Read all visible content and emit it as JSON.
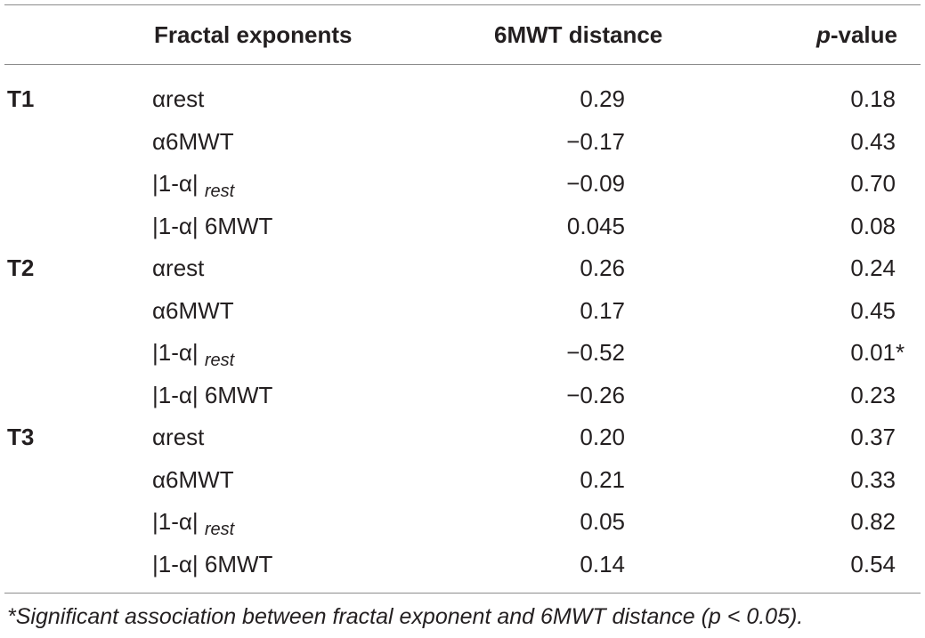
{
  "table": {
    "headers": {
      "exponents": "Fractal exponents",
      "distance": "6MWT distance",
      "p_italic": "p",
      "p_rest": "-value"
    },
    "rows": [
      {
        "group": "T1",
        "exponent": "αrest",
        "exp_sub": "",
        "distance": "0.29",
        "p": "0.18",
        "mark": ""
      },
      {
        "group": "",
        "exponent": "α6MWT",
        "exp_sub": "",
        "distance": "−0.17",
        "p": "0.43",
        "mark": ""
      },
      {
        "group": "",
        "exponent": "|1-α| ",
        "exp_sub": "rest",
        "distance": "−0.09",
        "p": "0.70",
        "mark": ""
      },
      {
        "group": "",
        "exponent": "|1-α| 6MWT",
        "exp_sub": "",
        "distance": "0.045",
        "p": "0.08",
        "mark": ""
      },
      {
        "group": "T2",
        "exponent": "αrest",
        "exp_sub": "",
        "distance": "0.26",
        "p": "0.24",
        "mark": ""
      },
      {
        "group": "",
        "exponent": "α6MWT",
        "exp_sub": "",
        "distance": "0.17",
        "p": "0.45",
        "mark": ""
      },
      {
        "group": "",
        "exponent": "|1-α| ",
        "exp_sub": "rest",
        "distance": "−0.52",
        "p": "0.01",
        "mark": "*"
      },
      {
        "group": "",
        "exponent": "|1-α| 6MWT",
        "exp_sub": "",
        "distance": "−0.26",
        "p": "0.23",
        "mark": ""
      },
      {
        "group": "T3",
        "exponent": "αrest",
        "exp_sub": "",
        "distance": "0.20",
        "p": "0.37",
        "mark": ""
      },
      {
        "group": "",
        "exponent": "α6MWT",
        "exp_sub": "",
        "distance": "0.21",
        "p": "0.33",
        "mark": ""
      },
      {
        "group": "",
        "exponent": "|1-α| ",
        "exp_sub": "rest",
        "distance": "0.05",
        "p": "0.82",
        "mark": ""
      },
      {
        "group": "",
        "exponent": "|1-α| 6MWT",
        "exp_sub": "",
        "distance": "0.14",
        "p": "0.54",
        "mark": ""
      }
    ],
    "footnote": "*Significant association between fractal exponent and 6MWT distance (p < 0.05)."
  }
}
